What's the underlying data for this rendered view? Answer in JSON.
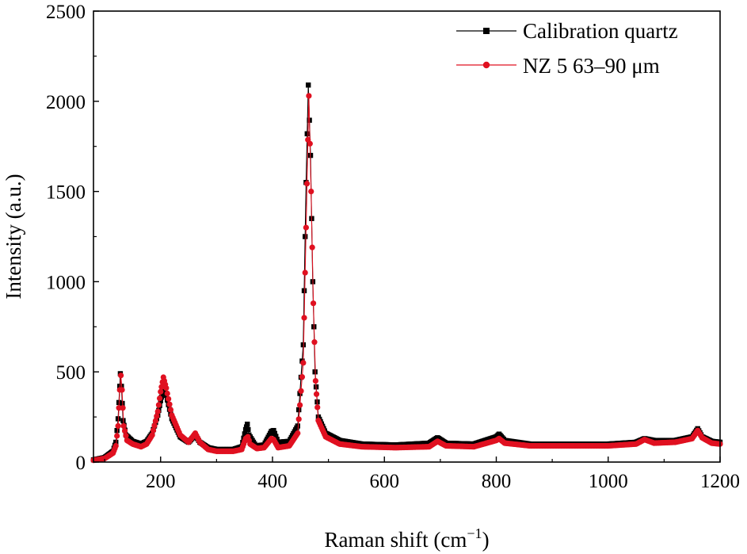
{
  "chart_data": {
    "type": "line",
    "title": "",
    "xlabel": "Raman shift (cm",
    "xlabel_sup": "−1",
    "xlabel_end": ")",
    "ylabel": "Intensity (a.u.)",
    "xlim": [
      80,
      1200
    ],
    "ylim": [
      0,
      2500
    ],
    "xticks": [
      200,
      400,
      600,
      800,
      1000,
      1200
    ],
    "yticks": [
      0,
      500,
      1000,
      1500,
      2000,
      2500
    ],
    "grid": false,
    "legend_position": "top-right",
    "series": [
      {
        "name": "Calibration quartz",
        "color": "#000000",
        "marker": "square",
        "peaks": [
          [
            128,
            470
          ],
          [
            205,
            340
          ],
          [
            263,
            60
          ],
          [
            355,
            130
          ],
          [
            400,
            90
          ],
          [
            465,
            2000
          ],
          [
            697,
            40
          ],
          [
            806,
            45
          ],
          [
            1065,
            25
          ],
          [
            1082,
            15
          ],
          [
            1161,
            80
          ]
        ],
        "points": [
          [
            80,
            12
          ],
          [
            100,
            25
          ],
          [
            115,
            60
          ],
          [
            120,
            110
          ],
          [
            124,
            240
          ],
          [
            127,
            420
          ],
          [
            128,
            490
          ],
          [
            130,
            420
          ],
          [
            133,
            230
          ],
          [
            138,
            150
          ],
          [
            150,
            115
          ],
          [
            165,
            100
          ],
          [
            175,
            115
          ],
          [
            185,
            160
          ],
          [
            195,
            260
          ],
          [
            200,
            340
          ],
          [
            205,
            400
          ],
          [
            210,
            370
          ],
          [
            220,
            240
          ],
          [
            235,
            140
          ],
          [
            250,
            110
          ],
          [
            262,
            150
          ],
          [
            270,
            110
          ],
          [
            285,
            80
          ],
          [
            300,
            70
          ],
          [
            330,
            70
          ],
          [
            345,
            85
          ],
          [
            352,
            180
          ],
          [
            355,
            210
          ],
          [
            358,
            150
          ],
          [
            370,
            90
          ],
          [
            385,
            95
          ],
          [
            398,
            170
          ],
          [
            402,
            175
          ],
          [
            410,
            110
          ],
          [
            430,
            115
          ],
          [
            445,
            200
          ],
          [
            455,
            650
          ],
          [
            460,
            1550
          ],
          [
            464,
            2090
          ],
          [
            468,
            1700
          ],
          [
            472,
            1000
          ],
          [
            476,
            500
          ],
          [
            482,
            250
          ],
          [
            495,
            160
          ],
          [
            520,
            120
          ],
          [
            560,
            100
          ],
          [
            620,
            95
          ],
          [
            680,
            105
          ],
          [
            695,
            135
          ],
          [
            710,
            105
          ],
          [
            760,
            100
          ],
          [
            800,
            140
          ],
          [
            805,
            155
          ],
          [
            815,
            120
          ],
          [
            860,
            100
          ],
          [
            950,
            100
          ],
          [
            1000,
            100
          ],
          [
            1050,
            110
          ],
          [
            1065,
            130
          ],
          [
            1082,
            120
          ],
          [
            1120,
            120
          ],
          [
            1150,
            140
          ],
          [
            1160,
            185
          ],
          [
            1168,
            140
          ],
          [
            1185,
            115
          ],
          [
            1200,
            110
          ]
        ]
      },
      {
        "name": "NZ 5 63–90 μm",
        "color": "#e01020",
        "marker": "circle",
        "peaks": [
          [
            128,
            400
          ],
          [
            205,
            380
          ],
          [
            263,
            80
          ],
          [
            355,
            70
          ],
          [
            400,
            40
          ],
          [
            465,
            1940
          ],
          [
            697,
            25
          ],
          [
            806,
            40
          ],
          [
            1065,
            35
          ],
          [
            1161,
            75
          ]
        ],
        "points": [
          [
            80,
            10
          ],
          [
            100,
            20
          ],
          [
            115,
            50
          ],
          [
            120,
            90
          ],
          [
            124,
            200
          ],
          [
            127,
            400
          ],
          [
            129,
            480
          ],
          [
            131,
            400
          ],
          [
            134,
            200
          ],
          [
            140,
            120
          ],
          [
            150,
            100
          ],
          [
            165,
            85
          ],
          [
            175,
            100
          ],
          [
            185,
            150
          ],
          [
            195,
            280
          ],
          [
            200,
            390
          ],
          [
            205,
            470
          ],
          [
            210,
            410
          ],
          [
            220,
            260
          ],
          [
            235,
            150
          ],
          [
            250,
            110
          ],
          [
            262,
            160
          ],
          [
            270,
            110
          ],
          [
            285,
            70
          ],
          [
            300,
            60
          ],
          [
            330,
            60
          ],
          [
            345,
            70
          ],
          [
            352,
            130
          ],
          [
            356,
            140
          ],
          [
            360,
            100
          ],
          [
            372,
            75
          ],
          [
            385,
            80
          ],
          [
            398,
            130
          ],
          [
            402,
            125
          ],
          [
            410,
            80
          ],
          [
            430,
            90
          ],
          [
            445,
            160
          ],
          [
            455,
            550
          ],
          [
            460,
            1300
          ],
          [
            465,
            2030
          ],
          [
            469,
            1500
          ],
          [
            473,
            880
          ],
          [
            477,
            450
          ],
          [
            482,
            230
          ],
          [
            495,
            140
          ],
          [
            520,
            100
          ],
          [
            560,
            85
          ],
          [
            620,
            80
          ],
          [
            680,
            85
          ],
          [
            695,
            115
          ],
          [
            710,
            90
          ],
          [
            760,
            85
          ],
          [
            800,
            120
          ],
          [
            805,
            130
          ],
          [
            815,
            105
          ],
          [
            860,
            90
          ],
          [
            950,
            90
          ],
          [
            1000,
            90
          ],
          [
            1050,
            100
          ],
          [
            1065,
            125
          ],
          [
            1082,
            105
          ],
          [
            1120,
            110
          ],
          [
            1150,
            130
          ],
          [
            1160,
            175
          ],
          [
            1168,
            135
          ],
          [
            1185,
            105
          ],
          [
            1200,
            100
          ]
        ]
      }
    ]
  }
}
